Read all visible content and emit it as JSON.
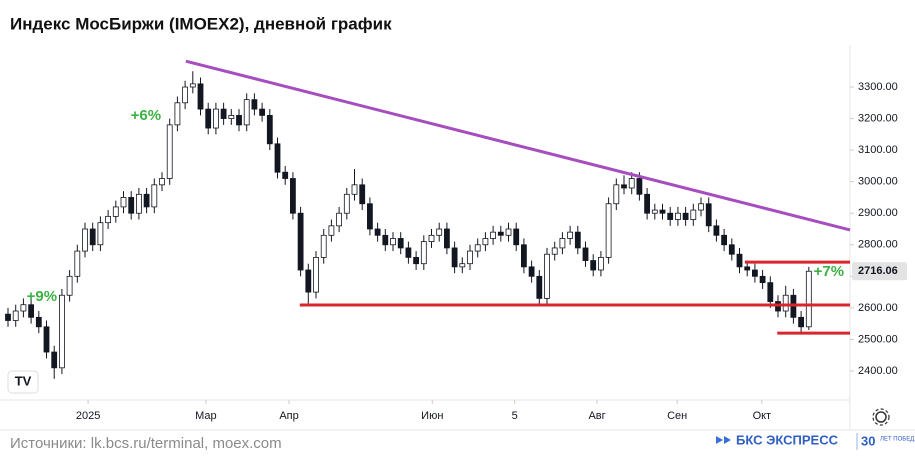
{
  "chart_data": {
    "type": "candlestick",
    "title": "Индекс МосБиржи (IMOEX2), дневной график",
    "open": [
      2580,
      2560,
      2590,
      2610,
      2570,
      2540,
      2460,
      2410,
      2640,
      2700,
      2780,
      2850,
      2800,
      2870,
      2890,
      2920,
      2950,
      2900,
      2960,
      2920,
      2990,
      3010,
      3180,
      3250,
      3300,
      3310,
      3230,
      3170,
      3230,
      3200,
      3210,
      3180,
      3260,
      3230,
      3210,
      3120,
      3030,
      3010,
      2900,
      2720,
      2650,
      2760,
      2830,
      2860,
      2900,
      2960,
      2990,
      2930,
      2850,
      2830,
      2800,
      2820,
      2790,
      2760,
      2740,
      2810,
      2830,
      2850,
      2790,
      2730,
      2740,
      2780,
      2800,
      2820,
      2840,
      2830,
      2850,
      2800,
      2730,
      2700,
      2630,
      2770,
      2790,
      2820,
      2840,
      2790,
      2750,
      2720,
      2760,
      2930,
      2990,
      2980,
      3010,
      2960,
      2900,
      2910,
      2900,
      2880,
      2900,
      2880,
      2910,
      2930,
      2860,
      2830,
      2800,
      2770,
      2730,
      2720,
      2700,
      2680,
      2620,
      2590,
      2640,
      2570,
      2540
    ],
    "high": [
      2600,
      2610,
      2630,
      2630,
      2590,
      2560,
      2480,
      2660,
      2720,
      2800,
      2870,
      2870,
      2890,
      2910,
      2940,
      2970,
      2970,
      2980,
      2980,
      3010,
      3030,
      3200,
      3270,
      3320,
      3350,
      3330,
      3250,
      3250,
      3250,
      3230,
      3230,
      3280,
      3280,
      3250,
      3230,
      3140,
      3050,
      3030,
      2920,
      2740,
      2780,
      2850,
      2880,
      2920,
      2980,
      3040,
      3010,
      2950,
      2870,
      2850,
      2840,
      2840,
      2810,
      2780,
      2830,
      2850,
      2870,
      2870,
      2810,
      2760,
      2800,
      2820,
      2840,
      2860,
      2860,
      2870,
      2870,
      2820,
      2750,
      2720,
      2790,
      2810,
      2840,
      2860,
      2860,
      2810,
      2770,
      2780,
      2950,
      3010,
      3020,
      3030,
      3030,
      2980,
      2930,
      2930,
      2920,
      2920,
      2920,
      2930,
      2950,
      2950,
      2880,
      2850,
      2820,
      2790,
      2750,
      2740,
      2720,
      2700,
      2640,
      2670,
      2660,
      2590,
      2730
    ],
    "low": [
      2540,
      2540,
      2570,
      2550,
      2520,
      2440,
      2375,
      2390,
      2620,
      2680,
      2760,
      2780,
      2780,
      2850,
      2870,
      2900,
      2880,
      2880,
      2900,
      2900,
      2970,
      2990,
      3160,
      3230,
      3280,
      3210,
      3150,
      3150,
      3180,
      3180,
      3160,
      3160,
      3210,
      3190,
      3100,
      3010,
      2990,
      2880,
      2700,
      2610,
      2630,
      2740,
      2810,
      2840,
      2880,
      2940,
      2910,
      2830,
      2810,
      2780,
      2780,
      2770,
      2740,
      2720,
      2720,
      2790,
      2810,
      2770,
      2710,
      2710,
      2720,
      2760,
      2780,
      2800,
      2810,
      2810,
      2780,
      2710,
      2680,
      2605,
      2610,
      2750,
      2770,
      2800,
      2770,
      2730,
      2700,
      2700,
      2740,
      2910,
      2960,
      2960,
      2940,
      2880,
      2880,
      2880,
      2860,
      2860,
      2860,
      2860,
      2890,
      2840,
      2810,
      2780,
      2750,
      2710,
      2700,
      2680,
      2660,
      2600,
      2570,
      2570,
      2550,
      2520,
      2530
    ],
    "close": [
      2560,
      2590,
      2610,
      2570,
      2540,
      2460,
      2410,
      2640,
      2700,
      2780,
      2850,
      2800,
      2870,
      2890,
      2920,
      2950,
      2900,
      2960,
      2920,
      2990,
      3010,
      3180,
      3250,
      3300,
      3310,
      3230,
      3170,
      3230,
      3200,
      3210,
      3180,
      3260,
      3230,
      3210,
      3120,
      3030,
      3010,
      2900,
      2720,
      2650,
      2760,
      2830,
      2860,
      2900,
      2960,
      2990,
      2930,
      2850,
      2830,
      2800,
      2820,
      2790,
      2760,
      2740,
      2810,
      2830,
      2850,
      2790,
      2730,
      2740,
      2780,
      2800,
      2820,
      2840,
      2830,
      2850,
      2800,
      2730,
      2700,
      2630,
      2770,
      2790,
      2820,
      2840,
      2790,
      2750,
      2720,
      2760,
      2930,
      2990,
      2980,
      3010,
      2960,
      2900,
      2910,
      2900,
      2880,
      2900,
      2880,
      2910,
      2930,
      2860,
      2830,
      2800,
      2770,
      2730,
      2720,
      2700,
      2680,
      2620,
      2590,
      2640,
      2570,
      2540,
      2716.06
    ],
    "up_color": "#ffffff",
    "down_color": "#131722",
    "edge_color": "#131722",
    "xlim": [
      -1.04,
      109.35
    ],
    "xticks": [
      {
        "value": 10.4,
        "label": "2025"
      },
      {
        "value": 25.7,
        "label": "Мар"
      },
      {
        "value": 36.5,
        "label": "Апр"
      },
      {
        "value": 55.1,
        "label": "Июн"
      },
      {
        "value": 65.8,
        "label": "5"
      },
      {
        "value": 76.5,
        "label": "Авг"
      },
      {
        "value": 86.9,
        "label": "Сен"
      },
      {
        "value": 97.9,
        "label": "Окт"
      }
    ],
    "ylim": [
      2308,
      3385
    ],
    "yticks": [
      {
        "value": 2400,
        "label": "2400.00"
      },
      {
        "value": 2500,
        "label": "2500.00"
      },
      {
        "value": 2600,
        "label": "2600.00"
      },
      {
        "value": 2700,
        "label": "2700.00"
      },
      {
        "value": 2800,
        "label": "2800.00"
      },
      {
        "value": 2900,
        "label": "2900.00"
      },
      {
        "value": 3000,
        "label": "3000.00"
      },
      {
        "value": 3100,
        "label": "3100.00"
      },
      {
        "value": 3200,
        "label": "3200.00"
      },
      {
        "value": 3300,
        "label": "3300.00"
      }
    ],
    "grid": false,
    "trendline": {
      "from": [
        23.1,
        3382
      ],
      "to": [
        109.35,
        2847
      ],
      "color": "#a64dbf"
    },
    "levels": [
      {
        "value": 2609,
        "from": 37.9,
        "to": 109.35
      },
      {
        "value": 2745,
        "from": 95.7,
        "to": 109.35
      },
      {
        "value": 2520,
        "from": 99.9,
        "to": 109.35
      }
    ],
    "level_color": "#d9262c",
    "annotations": [
      {
        "text": "+9%",
        "x": 4.4,
        "y": 2635
      },
      {
        "text": "+6%",
        "x": 17.9,
        "y": 3208
      },
      {
        "text": "+7%",
        "x": 106.6,
        "y": 2713
      }
    ],
    "annotation_color": "#3cb043"
  },
  "footer": {
    "source": "Источники: lk.bcs.ru/terminal, moex.com",
    "brand": "БКС ЭКСПРЕСС",
    "badge": "30",
    "badge_text": "ЛЕТ ПОБЕД"
  }
}
